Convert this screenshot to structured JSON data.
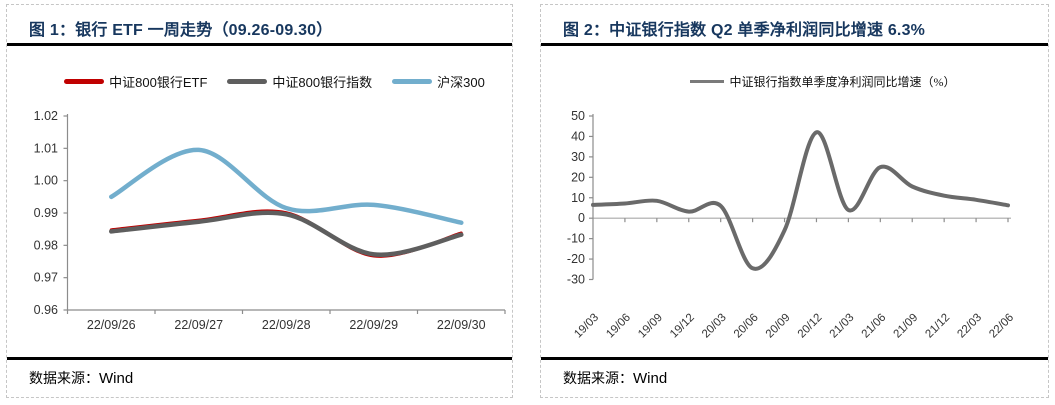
{
  "figure1": {
    "title": "图 1：银行 ETF 一周走势（09.26-09.30）",
    "source_label": "数据来源：",
    "source_value": "Wind"
  },
  "figure2": {
    "title": "图 2：中证银行指数 Q2 单季净利润同比增速 6.3%",
    "source_label": "数据来源：",
    "source_value": "Wind"
  },
  "colors": {
    "title_navy": "#17375E",
    "etf_red": "#C00000",
    "index_gray": "#5E5E5E",
    "hs300_blue": "#72AECD",
    "profit_line_gray": "#6A6A6A",
    "axis_gray": "#8C8C8C",
    "rule_black": "#000000"
  },
  "chart_data": [
    {
      "type": "line",
      "title": "银行 ETF 一周走势（09.26-09.30）",
      "categories": [
        "22/09/26",
        "22/09/27",
        "22/09/28",
        "22/09/29",
        "22/09/30"
      ],
      "series": [
        {
          "name": "中证800银行ETF",
          "color": "#C00000",
          "line_width": 3,
          "values": [
            0.9848,
            0.9878,
            0.9901,
            0.9767,
            0.9838
          ]
        },
        {
          "name": "中证800银行指数",
          "color": "#5E5E5E",
          "line_width": 4.5,
          "values": [
            0.9843,
            0.9873,
            0.9896,
            0.9772,
            0.9833
          ]
        },
        {
          "name": "沪深300",
          "color": "#72AECD",
          "line_width": 4.5,
          "values": [
            0.995,
            1.0095,
            0.9915,
            0.9925,
            0.987
          ]
        }
      ],
      "ylim": [
        0.96,
        1.02
      ],
      "y_ticks": [
        "1.02",
        "1.01",
        "1.00",
        "0.99",
        "0.98",
        "0.97",
        "0.96"
      ],
      "xlabel": "",
      "ylabel": "",
      "legend_position": "top",
      "grid": false,
      "smooth": true
    },
    {
      "type": "line",
      "title": "中证银行指数 Q2 单季净利润同比增速 6.3%",
      "categories": [
        "19/03",
        "19/06",
        "19/09",
        "19/12",
        "20/03",
        "20/06",
        "20/09",
        "20/12",
        "21/03",
        "21/06",
        "21/09",
        "21/12",
        "22/03",
        "22/06"
      ],
      "series": [
        {
          "name": "中证银行指数单季度净利润同比增速（%）",
          "color": "#6A6A6A",
          "legend_color": "#7A7A7A",
          "line_width": 4,
          "values": [
            6.5,
            7.2,
            8.5,
            3.2,
            6.0,
            -24.5,
            -6.0,
            42.0,
            4.0,
            25.0,
            15.5,
            11.0,
            9.0,
            6.3
          ]
        }
      ],
      "ylim": [
        -30,
        50
      ],
      "y_ticks": [
        "50",
        "40",
        "30",
        "20",
        "10",
        "0",
        "-10",
        "-20",
        "-30"
      ],
      "xlabel": "",
      "ylabel": "",
      "legend_position": "top",
      "grid": false,
      "smooth": true,
      "x_label_rotation": -45
    }
  ]
}
